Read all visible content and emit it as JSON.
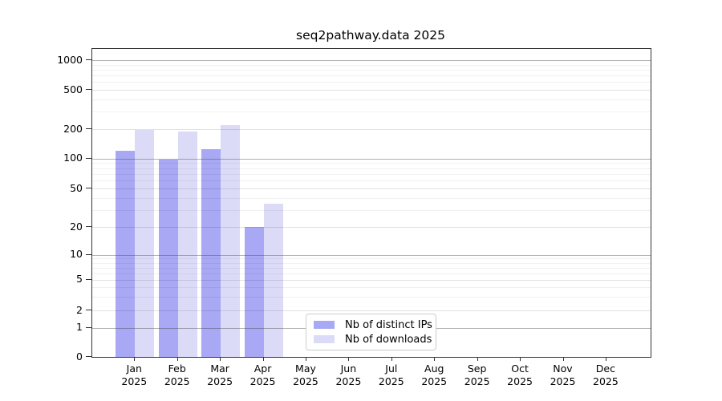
{
  "title": "seq2pathway.data 2025",
  "chart_data": {
    "type": "bar",
    "title": "seq2pathway.data 2025",
    "categories": [
      "Jan",
      "Feb",
      "Mar",
      "Apr",
      "May",
      "Jun",
      "Jul",
      "Aug",
      "Sep",
      "Oct",
      "Nov",
      "Dec"
    ],
    "year_label": "2025",
    "series": [
      {
        "name": "Nb of distinct IPs",
        "color": "#a8a8f4",
        "values": [
          120,
          97,
          125,
          20,
          null,
          null,
          null,
          null,
          null,
          null,
          null,
          null
        ]
      },
      {
        "name": "Nb of downloads",
        "color": "#dbdbf8",
        "values": [
          198,
          190,
          220,
          35,
          null,
          null,
          null,
          null,
          null,
          null,
          null,
          null
        ]
      }
    ],
    "xlabel": "",
    "ylabel": "",
    "y_axis": {
      "scale": "symlog",
      "major_ticks": [
        0,
        1,
        2,
        5,
        10,
        20,
        50,
        100,
        200,
        500,
        1000
      ],
      "minor_ticks": [
        3,
        4,
        6,
        7,
        8,
        9,
        30,
        40,
        60,
        70,
        80,
        90,
        300,
        400,
        600,
        700,
        800,
        900
      ]
    },
    "ylim": [
      0,
      1400
    ],
    "grid": true,
    "legend_position": "lower-center"
  },
  "colors": {
    "spine": "#333333",
    "grid_pow10": "#a9a9a9",
    "grid_major": "#e3e3e3",
    "grid_minor": "#f0f0f0"
  }
}
